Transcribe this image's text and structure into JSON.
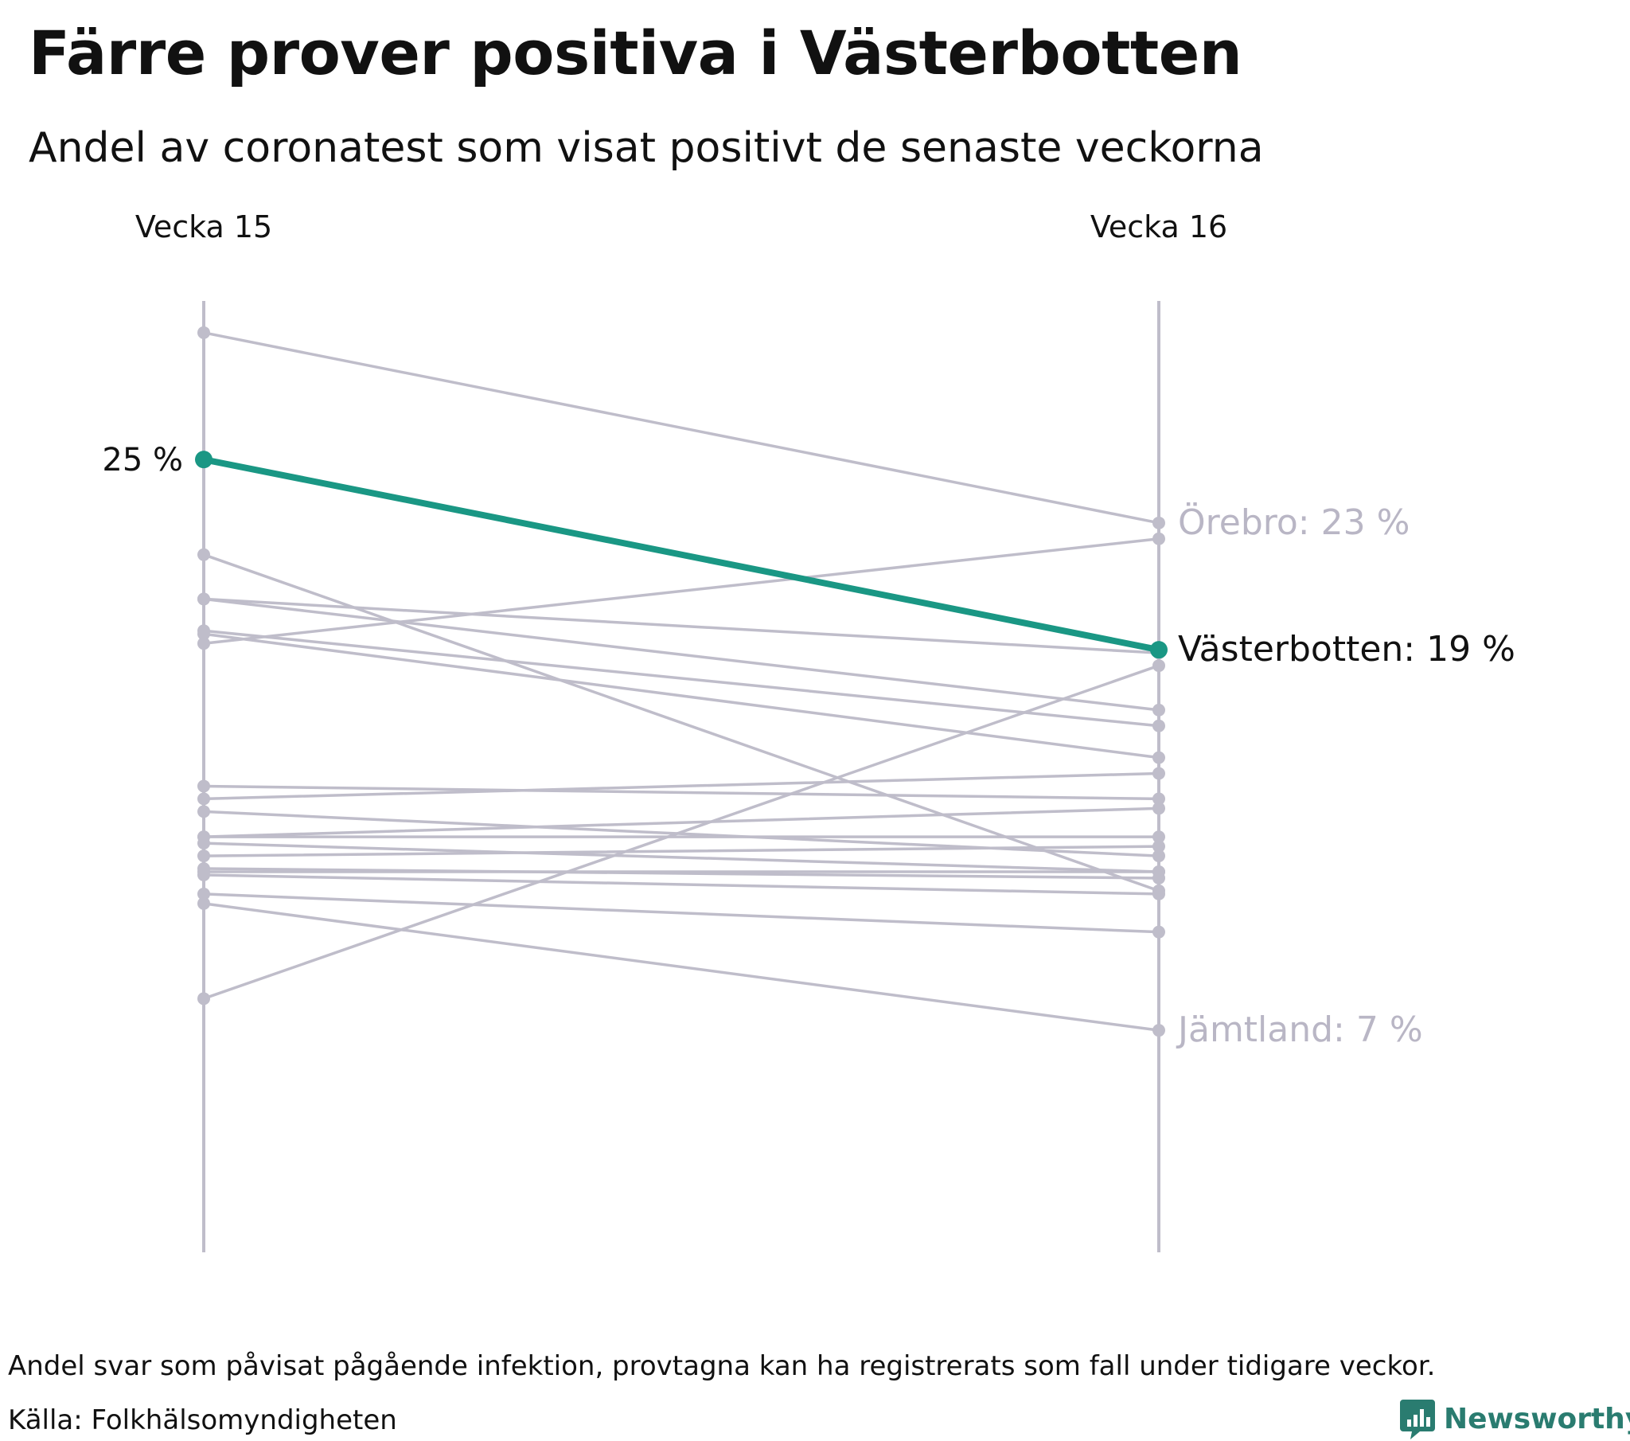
{
  "title": "Färre prover positiva i Västerbotten",
  "subtitle": "Andel av coronatest som visat positivt de senaste veckorna",
  "footer": {
    "note": "Andel svar som påvisat pågående infektion, provtagna kan ha registrerats som fall under tidigare veckor.",
    "source": "Källa: Folkhälsomyndigheten",
    "brand": "Newsworthy"
  },
  "colors": {
    "highlight": "#1a9784",
    "other": "#bfbdca",
    "label_other": "#b9b6c5",
    "text": "#111111",
    "brand": "#2a7c70"
  },
  "chart_data": {
    "type": "slope",
    "title": "Färre prover positiva i Västerbotten",
    "columns": [
      "Vecka 15",
      "Vecka 16"
    ],
    "ylim": [
      0,
      30
    ],
    "series": [
      {
        "name": "Örebro",
        "values": [
          29,
          23
        ],
        "label": "Örebro: 23 %"
      },
      {
        "name": "Västerbotten",
        "values": [
          25,
          19
        ],
        "highlight": true,
        "start_label": "25 %",
        "label": "Västerbotten: 19 %"
      },
      {
        "name": "Jämtland",
        "values": [
          11,
          7
        ],
        "label": "Jämtland: 7 %"
      },
      {
        "values": [
          8,
          18.5
        ]
      },
      {
        "values": [
          19.2,
          22.5
        ]
      },
      {
        "values": [
          22,
          11.4
        ]
      },
      {
        "values": [
          20.6,
          18.9
        ]
      },
      {
        "values": [
          20.6,
          17.1
        ]
      },
      {
        "values": [
          19.6,
          16.6
        ]
      },
      {
        "values": [
          19.5,
          15.6
        ]
      },
      {
        "values": [
          14.3,
          15.1
        ]
      },
      {
        "values": [
          14.7,
          14.3
        ]
      },
      {
        "values": [
          13.1,
          14
        ]
      },
      {
        "values": [
          13.1,
          13.1
        ]
      },
      {
        "values": [
          12.9,
          12
        ]
      },
      {
        "values": [
          12.5,
          12.8
        ]
      },
      {
        "values": [
          13.9,
          12.5
        ]
      },
      {
        "values": [
          12,
          12
        ]
      },
      {
        "values": [
          12.1,
          11.8
        ]
      },
      {
        "values": [
          11.9,
          11.3
        ]
      },
      {
        "values": [
          11.3,
          10.1
        ]
      }
    ]
  }
}
